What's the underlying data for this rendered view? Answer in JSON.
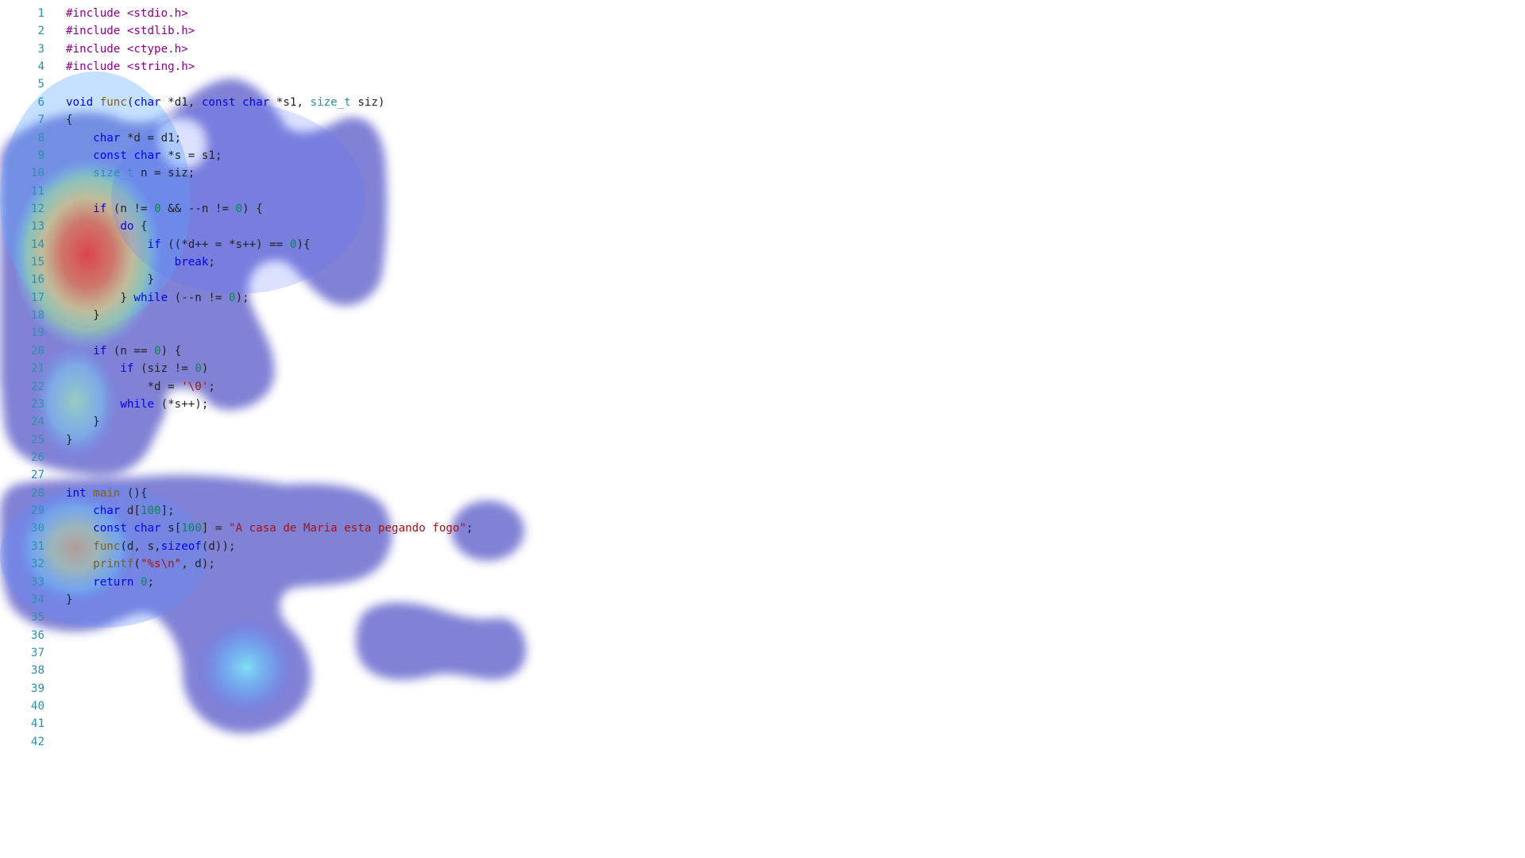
{
  "editor": {
    "line_number_color": "#2b91af",
    "lines": [
      {
        "n": "1",
        "text": "#include <stdio.h>"
      },
      {
        "n": "2",
        "text": "#include <stdlib.h>"
      },
      {
        "n": "3",
        "text": "#include <ctype.h>"
      },
      {
        "n": "4",
        "text": "#include <string.h>"
      },
      {
        "n": "5",
        "text": ""
      },
      {
        "n": "6",
        "text": "void func(char *d1, const char *s1, size_t siz)"
      },
      {
        "n": "7",
        "text": "{"
      },
      {
        "n": "8",
        "text": "    char *d = d1;"
      },
      {
        "n": "9",
        "text": "    const char *s = s1;"
      },
      {
        "n": "10",
        "text": "    size_t n = siz;"
      },
      {
        "n": "11",
        "text": ""
      },
      {
        "n": "12",
        "text": "    if (n != 0 && --n != 0) {"
      },
      {
        "n": "13",
        "text": "        do {"
      },
      {
        "n": "14",
        "text": "            if ((*d++ = *s++) == 0){"
      },
      {
        "n": "15",
        "text": "                break;"
      },
      {
        "n": "16",
        "text": "            }"
      },
      {
        "n": "17",
        "text": "        } while (--n != 0);"
      },
      {
        "n": "18",
        "text": "    }"
      },
      {
        "n": "19",
        "text": ""
      },
      {
        "n": "20",
        "text": "    if (n == 0) {"
      },
      {
        "n": "21",
        "text": "        if (siz != 0)"
      },
      {
        "n": "22",
        "text": "            *d = '\\0';"
      },
      {
        "n": "23",
        "text": "        while (*s++);"
      },
      {
        "n": "24",
        "text": "    }"
      },
      {
        "n": "25",
        "text": "}"
      },
      {
        "n": "26",
        "text": ""
      },
      {
        "n": "27",
        "text": ""
      },
      {
        "n": "28",
        "text": "int main (){"
      },
      {
        "n": "29",
        "text": "    char d[100];"
      },
      {
        "n": "30",
        "text": "    const char s[100] = \"A casa de Maria esta pegando fogo\";"
      },
      {
        "n": "31",
        "text": "    func(d, s,sizeof(d));"
      },
      {
        "n": "32",
        "text": "    printf(\"%s\\n\", d);"
      },
      {
        "n": "33",
        "text": "    return 0;"
      },
      {
        "n": "34",
        "text": "}"
      },
      {
        "n": "35",
        "text": ""
      },
      {
        "n": "36",
        "text": ""
      },
      {
        "n": "37",
        "text": ""
      },
      {
        "n": "38",
        "text": ""
      },
      {
        "n": "39",
        "text": ""
      },
      {
        "n": "40",
        "text": ""
      },
      {
        "n": "41",
        "text": ""
      },
      {
        "n": "42",
        "text": ""
      }
    ]
  },
  "heatmap": {
    "colors": {
      "base": "#6f6fd0",
      "cool": "#5aa8ff",
      "cyan": "#6ff0ff",
      "green": "#a0ff90",
      "yellow": "#ffee66",
      "hot": "#ff3a2a"
    }
  }
}
